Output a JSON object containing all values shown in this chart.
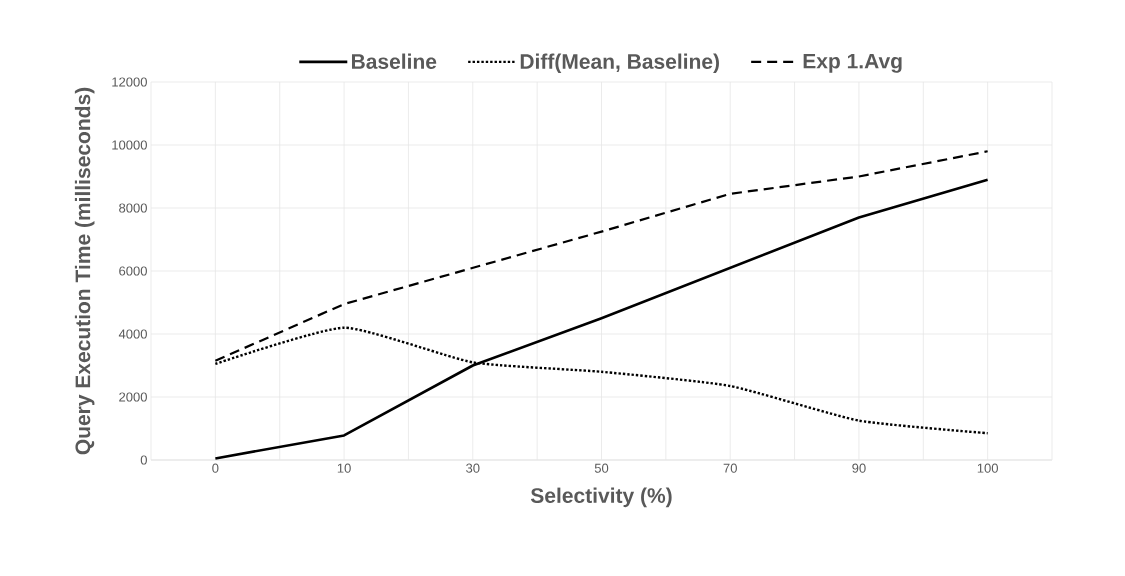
{
  "chart_data": {
    "type": "line",
    "xlabel": "Selectivity (%)",
    "ylabel": "Query Execution Time (milliseconds)",
    "categories": [
      "0",
      "10",
      "30",
      "50",
      "70",
      "90",
      "100"
    ],
    "series": [
      {
        "name": "Baseline",
        "color": "#000000",
        "line_style": "solid",
        "values": [
          50,
          780,
          3000,
          4500,
          6100,
          7700,
          8900
        ]
      },
      {
        "name": "Diff(Mean, Baseline)",
        "color": "#000000",
        "line_style": "dotted",
        "values": [
          3050,
          4200,
          3100,
          2800,
          2350,
          1250,
          850
        ]
      },
      {
        "name": "Exp 1.Avg",
        "color": "#000000",
        "line_style": "dashed",
        "values": [
          3150,
          4950,
          6100,
          7250,
          8450,
          9000,
          9800
        ]
      }
    ],
    "ylim": [
      0,
      12000
    ],
    "yticks": [
      0,
      2000,
      4000,
      6000,
      8000,
      10000,
      12000
    ],
    "grid": true,
    "legend": "top"
  }
}
